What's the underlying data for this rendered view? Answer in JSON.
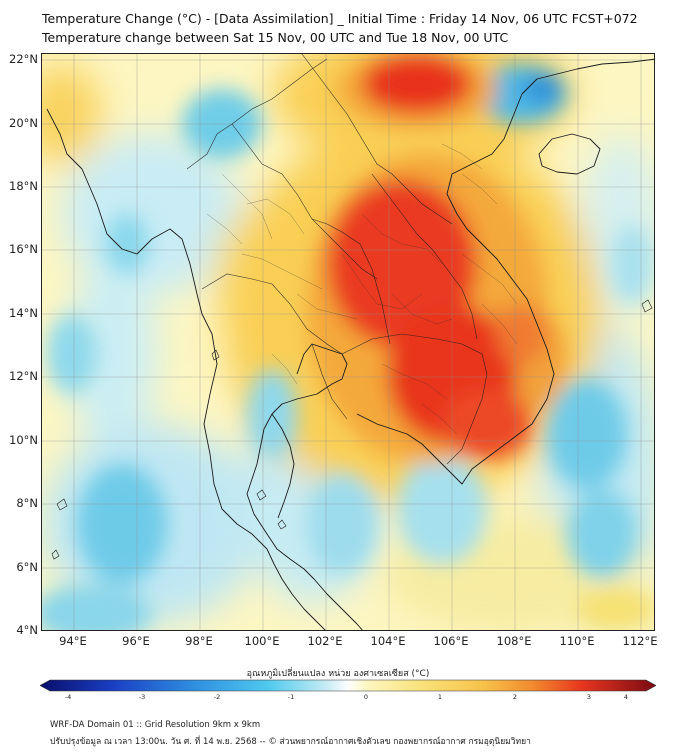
{
  "title_line1": "Temperature Change (°C) - [Data Assimilation] _ Initial Time : Friday 14 Nov, 06 UTC FCST+072",
  "title_line2": "Temperature change between Sat 15 Nov, 00 UTC and Tue 18 Nov, 00 UTC",
  "lat_labels": [
    "22°N",
    "20°N",
    "18°N",
    "16°N",
    "14°N",
    "12°N",
    "10°N",
    "8°N",
    "6°N",
    "4°N"
  ],
  "lon_labels": [
    "94°E",
    "96°E",
    "98°E",
    "100°E",
    "102°E",
    "104°E",
    "106°E",
    "108°E",
    "110°E",
    "112°E"
  ],
  "colorbar": {
    "title": "อุณหภูมิเปลี่ยนแปลง หน่วย องศาเซลเซียส (°C)",
    "min": -4,
    "max": 4,
    "ticks": [
      "-4",
      "-3",
      "-2",
      "-1",
      "0",
      "1",
      "2",
      "3",
      "4"
    ]
  },
  "footer_line1": "WRF-DA Domain 01 :: Grid Resolution 9km x 9km",
  "footer_line2": "ปรับปรุงข้อมูล ณ เวลา 13:00น. วัน ศ. ที่ 14 พ.ย. 2568 -- © ส่วนพยากรณ์อากาศเชิงตัวเลข กองพยากรณ์อากาศ กรมอุตุนิยมวิทยา",
  "map_data": {
    "lon_range": [
      93,
      112.5
    ],
    "lat_range": [
      4,
      22.2
    ],
    "field_anomalies": [
      {
        "lon": 104,
        "lat": 15,
        "value": 3.3
      },
      {
        "lon": 103,
        "lat": 17.5,
        "value": 3.0
      },
      {
        "lon": 105.5,
        "lat": 11,
        "value": 3.0
      },
      {
        "lon": 106.5,
        "lat": 13.5,
        "value": 2.5
      },
      {
        "lon": 104.5,
        "lat": 21.5,
        "value": 3.2
      },
      {
        "lon": 100,
        "lat": 15.5,
        "value": 1.0
      },
      {
        "lon": 108.5,
        "lat": 21.5,
        "value": -1.6
      },
      {
        "lon": 97,
        "lat": 19.8,
        "value": -1.2
      },
      {
        "lon": 94.5,
        "lat": 13,
        "value": -1.0
      },
      {
        "lon": 96,
        "lat": 7,
        "value": -1.3
      },
      {
        "lon": 110.5,
        "lat": 8.5,
        "value": -1.4
      },
      {
        "lon": 111,
        "lat": 17,
        "value": -0.7
      },
      {
        "lon": 100.5,
        "lat": 10,
        "value": -1.0
      },
      {
        "lon": 107,
        "lat": 5,
        "value": 0.9
      }
    ]
  }
}
